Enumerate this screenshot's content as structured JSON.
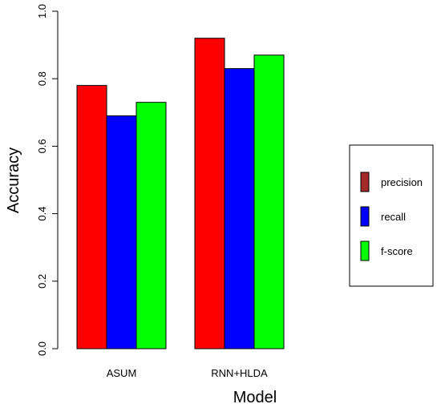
{
  "chart_data": {
    "type": "bar",
    "title": "",
    "xlabel": "Model",
    "ylabel": "Accuracy",
    "categories": [
      "ASUM",
      "RNN+HLDA"
    ],
    "series": [
      {
        "name": "precision",
        "values": [
          0.78,
          0.92
        ],
        "color": "#ff0000",
        "legend_color": "#a52a2a"
      },
      {
        "name": "recall",
        "values": [
          0.69,
          0.83
        ],
        "color": "#0000ff",
        "legend_color": "#0000ff"
      },
      {
        "name": "f-score",
        "values": [
          0.73,
          0.87
        ],
        "color": "#00ff00",
        "legend_color": "#00ff00"
      }
    ],
    "ylim": [
      0,
      1
    ],
    "yticks": [
      "0.0",
      "0.2",
      "0.4",
      "0.6",
      "0.8",
      "1.0"
    ],
    "grid": false,
    "legend_position": "right"
  }
}
